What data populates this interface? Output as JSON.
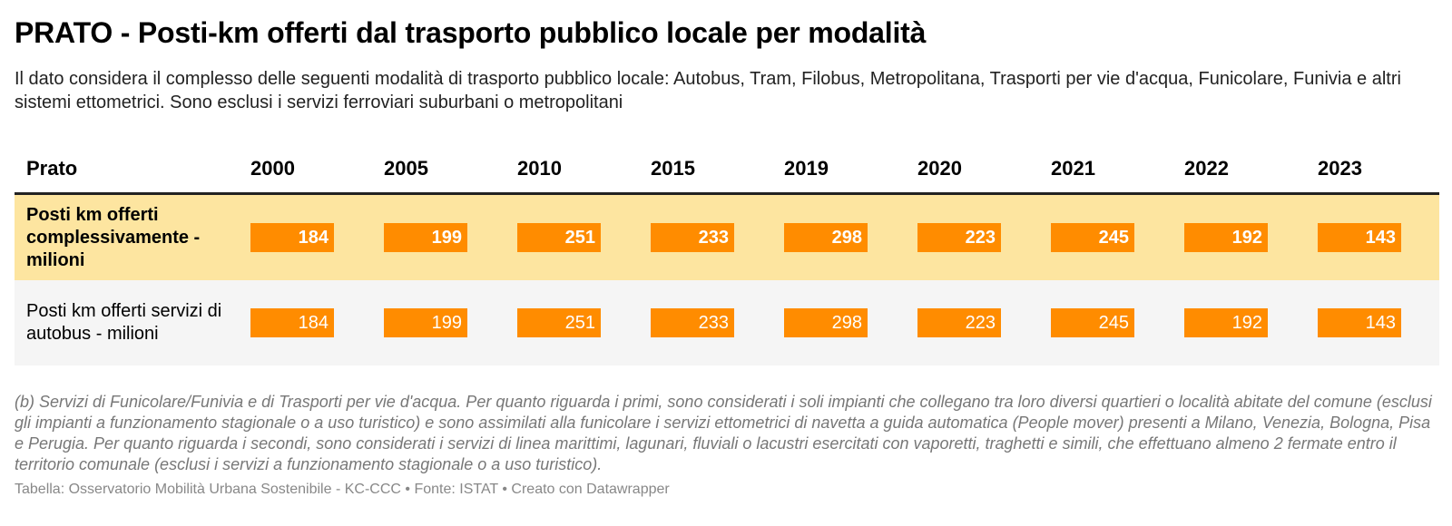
{
  "title": "PRATO - Posti-km offerti dal trasporto pubblico locale per modalità",
  "subtitle": "Il dato considera il complesso delle seguenti modalità di trasporto pubblico locale: Autobus, Tram, Filobus, Metropolitana, Trasporti per vie d'acqua, Funicolare, Funivia e altri sistemi ettometrici. Sono esclusi i servizi ferroviari suburbani o metropolitani",
  "colors": {
    "bar": "#ff8c00",
    "highlight_row": "#fde5a0",
    "plain_row": "#f5f5f5"
  },
  "chart_data": {
    "type": "table",
    "header_label": "Prato",
    "columns": [
      "2000",
      "2005",
      "2010",
      "2015",
      "2019",
      "2020",
      "2021",
      "2022",
      "2023"
    ],
    "rows": [
      {
        "label": "Posti km offerti complessivamente -milioni",
        "highlighted": true,
        "values": [
          184,
          199,
          251,
          233,
          298,
          223,
          245,
          192,
          143
        ]
      },
      {
        "label": "Posti km offerti servizi di autobus - milioni",
        "highlighted": false,
        "values": [
          184,
          199,
          251,
          233,
          298,
          223,
          245,
          192,
          143
        ]
      }
    ]
  },
  "notes": "(b) Servizi di Funicolare/Funivia e di Trasporti per vie d'acqua. Per quanto riguarda i primi, sono considerati i soli impianti che collegano tra loro diversi quartieri o località abitate del comune (esclusi gli impianti a funzionamento stagionale o a uso turistico) e sono assimilati alla funicolare i servizi ettometrici di navetta a guida automatica (People mover) presenti a Milano, Venezia, Bologna, Pisa e Perugia. Per quanto riguarda i secondi, sono considerati i servizi di linea marittimi, lagunari, fluviali o lacustri esercitati con vaporetti, traghetti e simili, che effettuano almeno 2 fermate entro il territorio comunale (esclusi i servizi a funzionamento stagionale o a uso turistico).",
  "footer": "Tabella: Osservatorio Mobilità Urbana Sostenibile - KC-CCC • Fonte: ISTAT • Creato con Datawrapper"
}
